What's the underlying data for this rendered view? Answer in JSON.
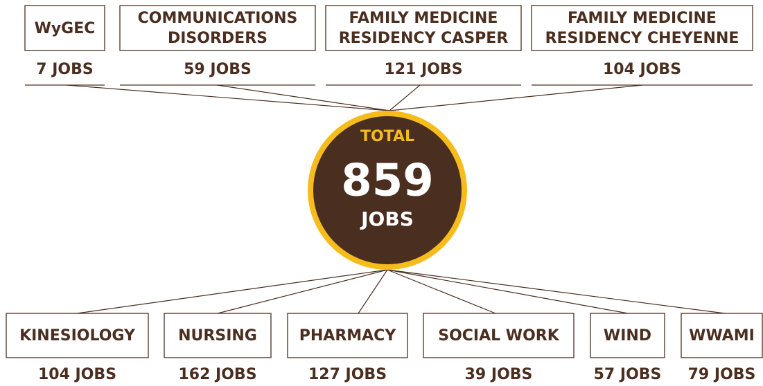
{
  "total": {
    "label": "TOTAL",
    "value": "859",
    "unit": "JOBS"
  },
  "top": [
    {
      "name": [
        "WyGEC"
      ],
      "jobs": "7 JOBS"
    },
    {
      "name": [
        "COMMUNICATIONS",
        "DISORDERS"
      ],
      "jobs": "59 JOBS"
    },
    {
      "name": [
        "FAMILY MEDICINE",
        "RESIDENCY CASPER"
      ],
      "jobs": "121 JOBS"
    },
    {
      "name": [
        "FAMILY MEDICINE",
        "RESIDENCY CHEYENNE"
      ],
      "jobs": "104 JOBS"
    }
  ],
  "bottom": [
    {
      "name": [
        "KINESIOLOGY"
      ],
      "jobs": "104 JOBS"
    },
    {
      "name": [
        "NURSING"
      ],
      "jobs": "162 JOBS"
    },
    {
      "name": [
        "PHARMACY"
      ],
      "jobs": "127 JOBS"
    },
    {
      "name": [
        "SOCIAL WORK"
      ],
      "jobs": "39 JOBS"
    },
    {
      "name": [
        "WIND"
      ],
      "jobs": "57 JOBS"
    },
    {
      "name": [
        "WWAMI"
      ],
      "jobs": "79 JOBS"
    }
  ]
}
